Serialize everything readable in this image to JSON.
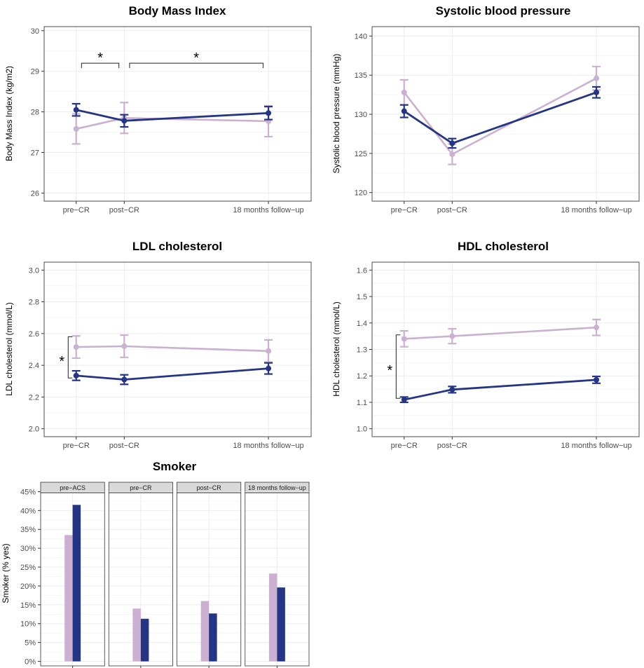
{
  "colors": {
    "series_a": "#cbb0d2",
    "series_b": "#253585",
    "grid": "#ebebeb",
    "frame": "#4d4d4d",
    "strip": "#d9d9d9"
  },
  "chart_data": [
    {
      "type": "line",
      "title": "Body Mass Index",
      "ylabel": "Body Mass Index (kg/m2)",
      "categories": [
        "pre−CR",
        "post−CR",
        "18 months follow−up"
      ],
      "x": [
        1,
        1.9,
        4.6
      ],
      "ylim": [
        25.8,
        30.1
      ],
      "yticks": [
        26,
        27,
        28,
        29,
        30
      ],
      "ytick_labels": [
        "26",
        "27",
        "28",
        "29",
        "30"
      ],
      "series": [
        {
          "values": [
            27.58,
            27.85,
            27.77
          ],
          "err": [
            0.37,
            0.38,
            0.38
          ]
        },
        {
          "values": [
            28.05,
            27.78,
            27.97
          ],
          "err": [
            0.15,
            0.15,
            0.16
          ]
        }
      ],
      "annotations": [
        {
          "type": "bracket-h",
          "from": 1.1,
          "to": 1.8,
          "y": 29.2,
          "label": "*"
        },
        {
          "type": "bracket-h",
          "from": 2.0,
          "to": 4.5,
          "y": 29.2,
          "label": "*"
        }
      ]
    },
    {
      "type": "line",
      "title": "Systolic blood pressure",
      "ylabel": "Systolic blood pressure (mmHg)",
      "categories": [
        "pre−CR",
        "post−CR",
        "18 months follow−up"
      ],
      "x": [
        1,
        1.9,
        4.6
      ],
      "ylim": [
        118.9,
        141.2
      ],
      "yticks": [
        120,
        125,
        130,
        135,
        140
      ],
      "ytick_labels": [
        "120",
        "125",
        "130",
        "135",
        "140"
      ],
      "series": [
        {
          "values": [
            132.8,
            124.9,
            134.6
          ],
          "err": [
            1.6,
            1.3,
            1.5
          ]
        },
        {
          "values": [
            130.4,
            126.3,
            132.8
          ],
          "err": [
            0.8,
            0.6,
            0.7
          ]
        }
      ],
      "annotations": []
    },
    {
      "type": "line",
      "title": "LDL cholesterol",
      "ylabel": "LDL cholesterol (mmol/L)",
      "categories": [
        "pre−CR",
        "post−CR",
        "18 months follow−up"
      ],
      "x": [
        1,
        1.9,
        4.6
      ],
      "ylim": [
        1.95,
        3.05
      ],
      "yticks": [
        2.0,
        2.2,
        2.4,
        2.6,
        2.8,
        3.0
      ],
      "ytick_labels": [
        "2.0",
        "2.2",
        "2.4",
        "2.6",
        "2.8",
        "3.0"
      ],
      "series": [
        {
          "values": [
            2.515,
            2.52,
            2.49
          ],
          "err": [
            0.07,
            0.07,
            0.07
          ]
        },
        {
          "values": [
            2.335,
            2.31,
            2.38
          ],
          "err": [
            0.03,
            0.03,
            0.035
          ]
        }
      ],
      "annotations": [
        {
          "type": "bracket-v",
          "x": 0.85,
          "from": 2.32,
          "to": 2.58,
          "label": "*"
        }
      ]
    },
    {
      "type": "line",
      "title": "HDL cholesterol",
      "ylabel": "HDL cholesterol (mmol/L)",
      "categories": [
        "pre−CR",
        "post−CR",
        "18 months follow−up"
      ],
      "x": [
        1,
        1.9,
        4.6
      ],
      "ylim": [
        0.97,
        1.63
      ],
      "yticks": [
        1.0,
        1.1,
        1.2,
        1.3,
        1.4,
        1.5,
        1.6
      ],
      "ytick_labels": [
        "1.0",
        "1.1",
        "1.2",
        "1.3",
        "1.4",
        "1.5",
        "1.6"
      ],
      "series": [
        {
          "values": [
            1.34,
            1.35,
            1.383
          ],
          "err": [
            0.03,
            0.028,
            0.03
          ]
        },
        {
          "values": [
            1.11,
            1.148,
            1.185
          ],
          "err": [
            0.01,
            0.012,
            0.013
          ]
        }
      ],
      "annotations": [
        {
          "type": "bracket-v",
          "x": 0.85,
          "from": 1.115,
          "to": 1.355,
          "label": "*"
        }
      ]
    },
    {
      "type": "bar",
      "title": "Smoker",
      "ylabel": "Smoker (% yes)",
      "categories": [
        "pre−ACS",
        "pre−CR",
        "post−CR",
        "18 months follow−up"
      ],
      "ylim": [
        -1.2,
        47.5
      ],
      "yticks": [
        0,
        5,
        10,
        15,
        20,
        25,
        30,
        35,
        40,
        45
      ],
      "ytick_labels": [
        "0%",
        "5%",
        "10%",
        "15%",
        "20%",
        "25%",
        "30%",
        "35%",
        "40%",
        "45%"
      ],
      "series": [
        {
          "values": [
            33.5,
            14.0,
            16.0,
            23.3
          ]
        },
        {
          "values": [
            41.5,
            11.3,
            12.7,
            19.6
          ]
        }
      ]
    }
  ]
}
